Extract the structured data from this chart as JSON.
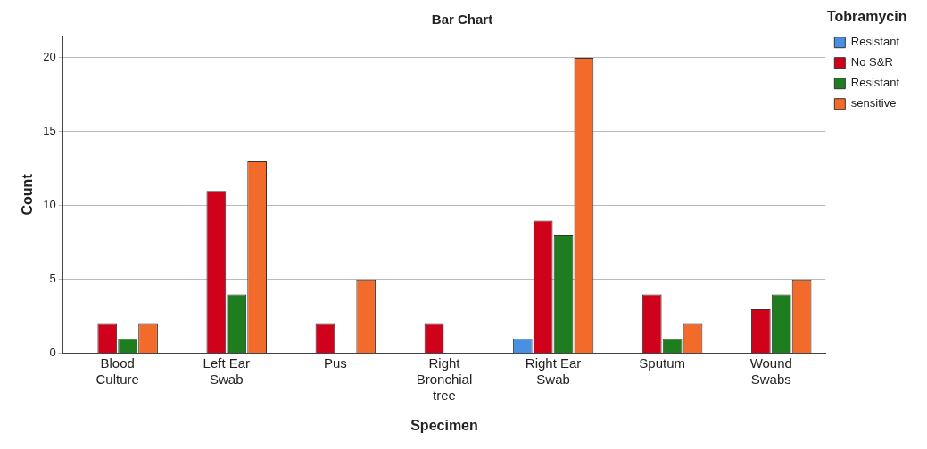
{
  "chart_data": {
    "type": "bar",
    "title": "Bar Chart",
    "xlabel": "Specimen",
    "ylabel": "Count",
    "legend_title": "Tobramycin",
    "legend": "right",
    "grid": "y",
    "categories": [
      "Blood Culture",
      "Left Ear Swab",
      "Pus",
      "Right Bronchial tree",
      "Right Ear Swab",
      "Sputum",
      "Wound Swabs"
    ],
    "series": [
      {
        "name": "Resistant",
        "color": "#4a90e2",
        "values": [
          null,
          null,
          null,
          null,
          1,
          null,
          null
        ]
      },
      {
        "name": "No S&R",
        "color": "#d0021b",
        "values": [
          2,
          11,
          2,
          2,
          9,
          4,
          3
        ]
      },
      {
        "name": "Resistant",
        "color": "#1e7d1e",
        "values": [
          1,
          4,
          null,
          null,
          8,
          1,
          4
        ]
      },
      {
        "name": "sensitive",
        "color": "#f26b2a",
        "values": [
          2,
          13,
          5,
          null,
          20,
          2,
          5
        ]
      }
    ],
    "ylim": [
      0,
      21.5
    ],
    "yticks": [
      0,
      5,
      10,
      15,
      20
    ]
  }
}
